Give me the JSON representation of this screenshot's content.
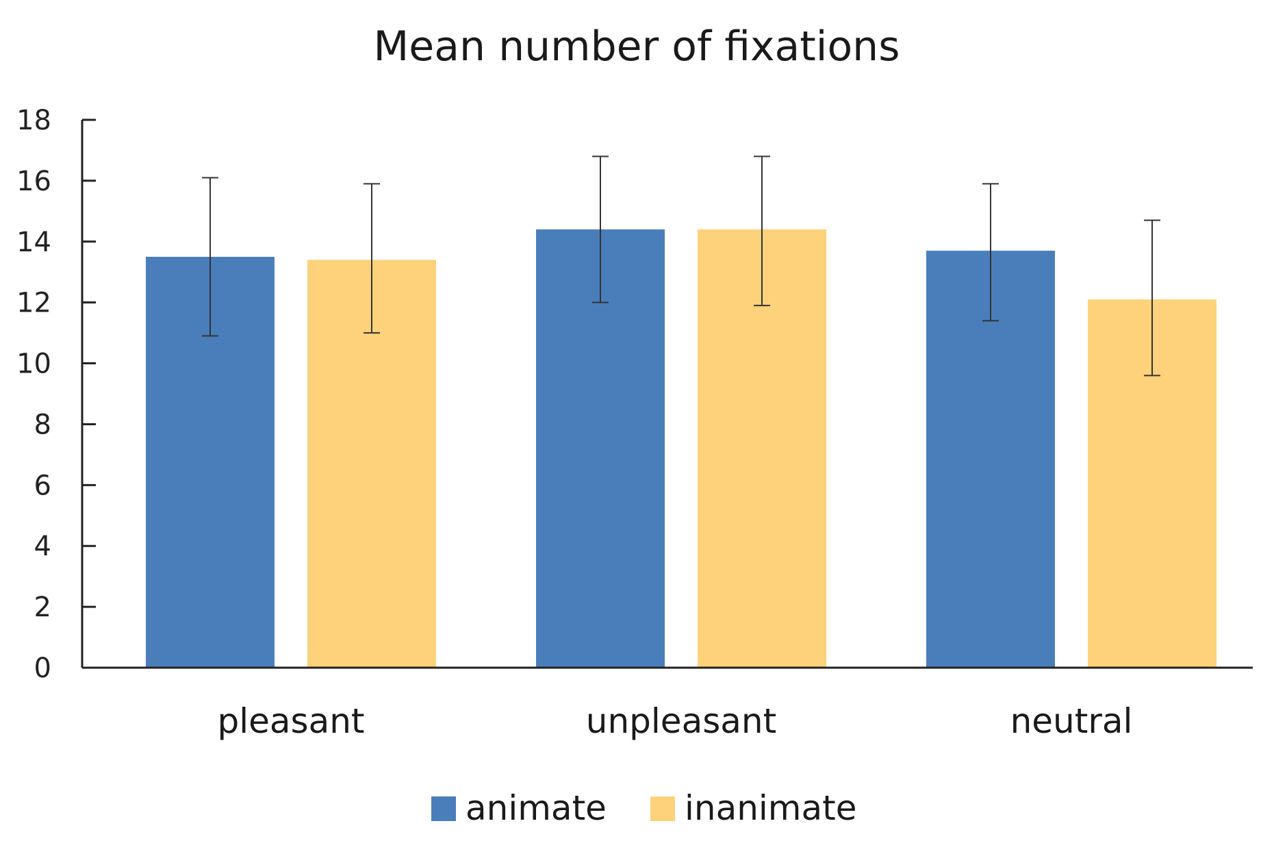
{
  "chart_data": {
    "type": "bar",
    "title": "Mean number of fixations",
    "xlabel": "",
    "ylabel": "",
    "categories": [
      "pleasant",
      "unpleasant",
      "neutral"
    ],
    "series": [
      {
        "name": "animate",
        "color": "#4a7ebb",
        "values": [
          13.5,
          14.4,
          13.7
        ],
        "error_low": [
          10.9,
          12.0,
          11.4
        ],
        "error_high": [
          16.1,
          16.8,
          15.9
        ]
      },
      {
        "name": "inanimate",
        "color": "#fdd27b",
        "values": [
          13.4,
          14.4,
          12.1
        ],
        "error_low": [
          11.0,
          11.9,
          9.6
        ],
        "error_high": [
          15.9,
          16.8,
          14.7
        ]
      }
    ],
    "ylim": [
      0,
      18
    ],
    "yticks": [
      "0",
      "2",
      "4",
      "6",
      "8",
      "10",
      "12",
      "14",
      "16",
      "18"
    ],
    "grid": false,
    "legend": "bottom-center"
  }
}
